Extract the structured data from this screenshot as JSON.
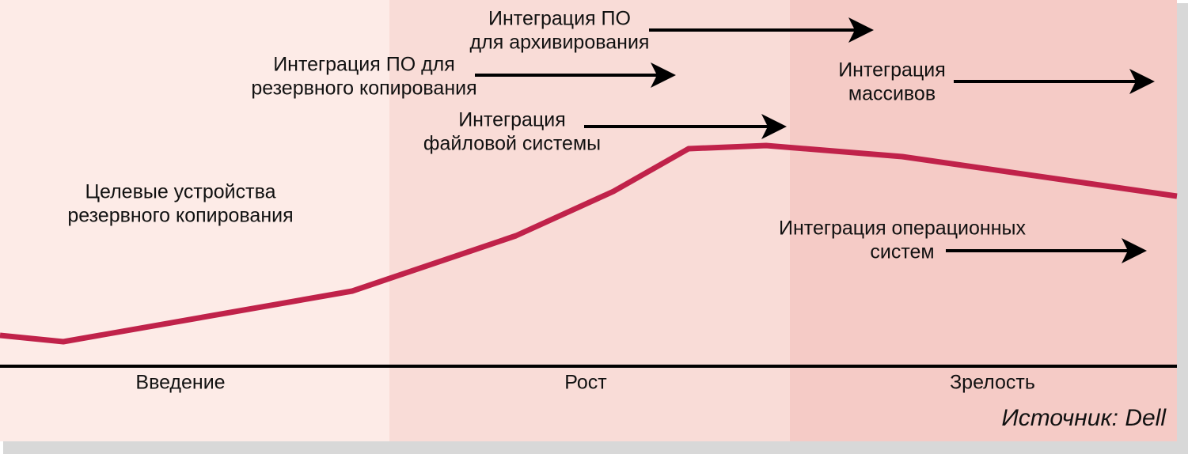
{
  "annotations": [
    {
      "lines": [
        "Интеграция ПО",
        "для архивирования"
      ]
    },
    {
      "lines": [
        "Интеграция ПО для",
        "резервного копирования"
      ]
    },
    {
      "lines": [
        "Интеграция",
        "файловой системы"
      ]
    },
    {
      "lines": [
        "Интеграция",
        "массивов"
      ]
    },
    {
      "lines": [
        "Интеграция операционных",
        "систем"
      ]
    },
    {
      "lines": [
        "Целевые устройства",
        "резервного копирования"
      ]
    }
  ],
  "phases": [
    "Введение",
    "Рост",
    "Зрелость"
  ],
  "source": "Источник: Dell"
}
